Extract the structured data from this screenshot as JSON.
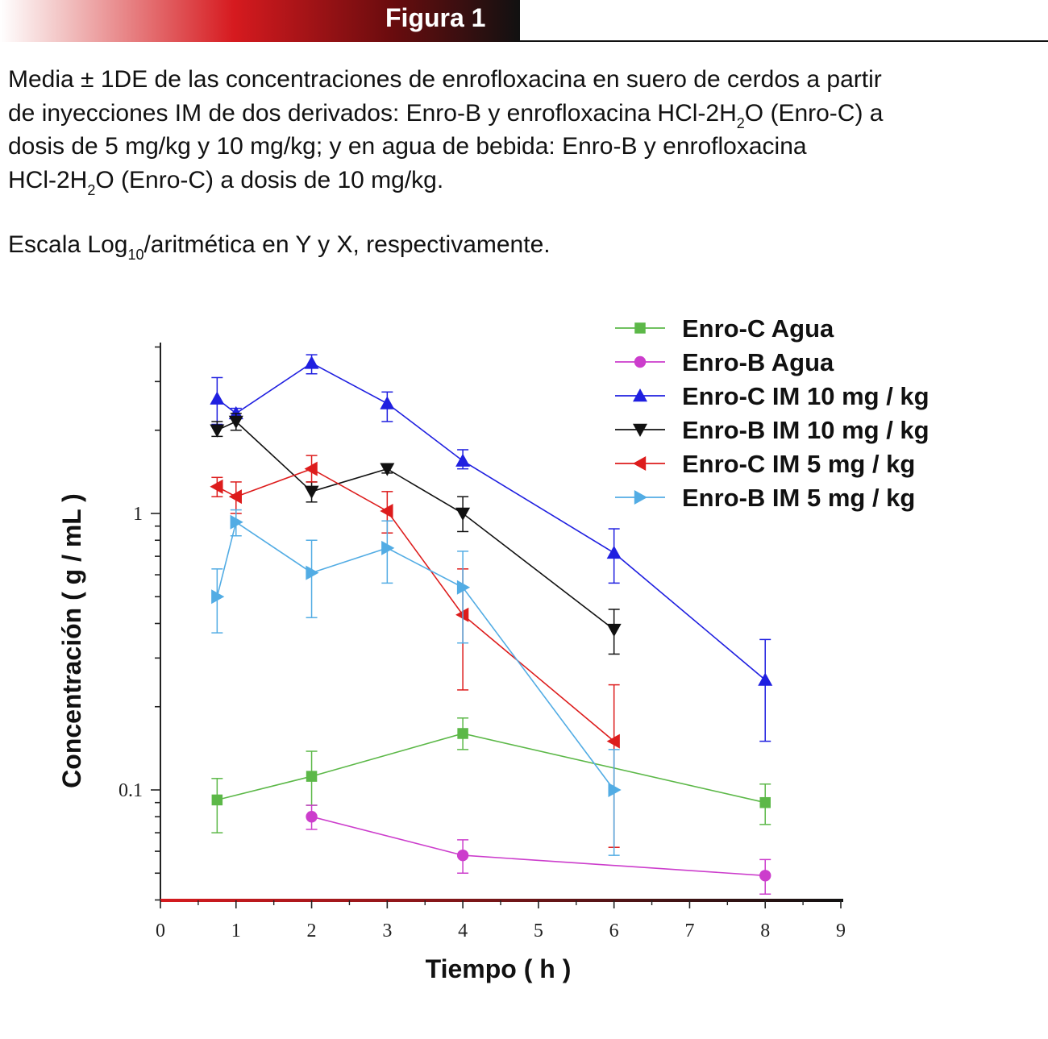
{
  "header": {
    "title": "Figura 1"
  },
  "caption": {
    "line1": "Media ± 1DE de las concentraciones de enrofloxacina en suero de cerdos a partir",
    "line2_a": "de inyecciones IM de dos derivados: Enro-B y enrofloxacina HCl-2H",
    "line2_sub": "2",
    "line2_b": "O (Enro-C) a",
    "line3": "dosis de 5 mg/kg y 10 mg/kg; y en agua de bebida: Enro-B y enrofloxacina",
    "line4_a": "HCl-2H",
    "line4_sub": "2",
    "line4_b": "O (Enro-C) a dosis de 10 mg/kg.",
    "scale_a": "Escala Log",
    "scale_sub": "10",
    "scale_b": "/aritmética en Y y X, respectivamente."
  },
  "colors": {
    "axis_gradient": [
      "#d61a1f",
      "#111111"
    ]
  },
  "chart_data": {
    "type": "line",
    "xlabel": "Tiempo ( h )",
    "ylabel": "Concentración ( g / mL )",
    "xlim": [
      0,
      9
    ],
    "ylim": [
      0.04,
      4.0
    ],
    "yscale": "log",
    "x_ticks": [
      "0",
      "1",
      "2",
      "3",
      "4",
      "5",
      "6",
      "7",
      "8",
      "9"
    ],
    "y_tick_labels": [
      {
        "value": 0.1,
        "label": "0.1"
      },
      {
        "value": 1,
        "label": "1"
      }
    ],
    "legend_position": "top-right",
    "series": [
      {
        "name": "Enro-C Agua",
        "color": "#5cb848",
        "marker": "square",
        "x": [
          0.75,
          2,
          4,
          8
        ],
        "y": [
          0.092,
          0.112,
          0.16,
          0.09
        ],
        "err_low": [
          0.07,
          0.088,
          0.14,
          0.075
        ],
        "err_high": [
          0.11,
          0.138,
          0.182,
          0.105
        ]
      },
      {
        "name": "Enro-B Agua",
        "color": "#cc3dcc",
        "marker": "circle",
        "x": [
          2,
          4,
          8
        ],
        "y": [
          0.08,
          0.058,
          0.049
        ],
        "err_low": [
          0.072,
          0.05,
          0.042
        ],
        "err_high": [
          0.088,
          0.066,
          0.056
        ]
      },
      {
        "name": "Enro-C IM 10 mg / kg",
        "color": "#1f1fe0",
        "marker": "triangle-up",
        "x": [
          0.75,
          1,
          2,
          3,
          4,
          6,
          8
        ],
        "y": [
          2.6,
          2.3,
          3.5,
          2.5,
          1.55,
          0.72,
          0.25
        ],
        "err_low": [
          2.1,
          2.2,
          3.2,
          2.15,
          1.45,
          0.56,
          0.15
        ],
        "err_high": [
          3.1,
          2.4,
          3.75,
          2.75,
          1.7,
          0.88,
          0.35
        ]
      },
      {
        "name": "Enro-B IM 10 mg / kg",
        "color": "#111111",
        "marker": "triangle-down",
        "x": [
          0.75,
          1,
          2,
          3,
          4,
          6
        ],
        "y": [
          2.0,
          2.15,
          1.2,
          1.45,
          1.0,
          0.38
        ],
        "err_low": [
          1.9,
          2.0,
          1.1,
          1.4,
          0.86,
          0.31
        ],
        "err_high": [
          2.15,
          2.3,
          1.3,
          1.5,
          1.15,
          0.45
        ]
      },
      {
        "name": "Enro-C IM 5 mg / kg",
        "color": "#dd1c1c",
        "marker": "triangle-left",
        "x": [
          0.75,
          1,
          2,
          3,
          4,
          6
        ],
        "y": [
          1.25,
          1.15,
          1.45,
          1.02,
          0.43,
          0.15
        ],
        "err_low": [
          1.15,
          1.0,
          1.3,
          0.85,
          0.23,
          0.062
        ],
        "err_high": [
          1.35,
          1.3,
          1.62,
          1.2,
          0.63,
          0.24
        ]
      },
      {
        "name": "Enro-B IM 5 mg / kg",
        "color": "#52ace4",
        "marker": "triangle-right",
        "x": [
          0.75,
          1,
          2,
          3,
          4,
          6
        ],
        "y": [
          0.5,
          0.93,
          0.61,
          0.75,
          0.54,
          0.1
        ],
        "err_low": [
          0.37,
          0.83,
          0.42,
          0.56,
          0.34,
          0.058
        ],
        "err_high": [
          0.63,
          1.03,
          0.8,
          0.94,
          0.73,
          0.14
        ]
      }
    ]
  }
}
